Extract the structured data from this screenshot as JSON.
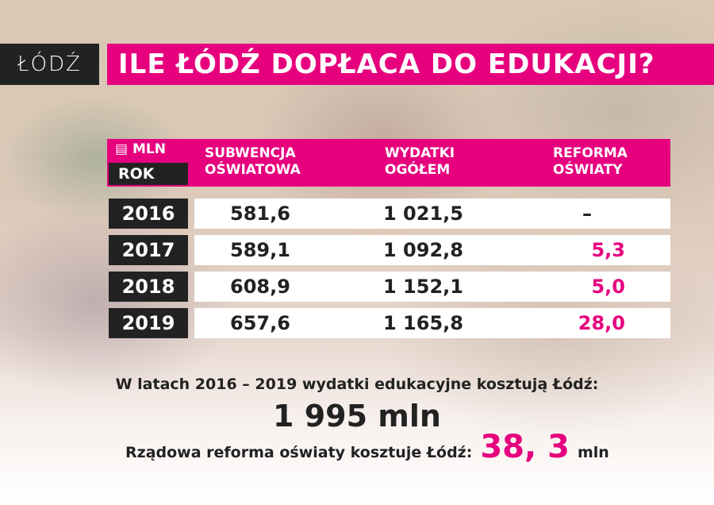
{
  "logo": "ŁÓDŹ",
  "title": "ILE ŁÓDŹ DOPŁACA DO EDUKACJI?",
  "header": {
    "unit": "MLN",
    "unit_icon": "money-stack-icon",
    "year": "ROK",
    "col1": [
      "SUBWENCJA",
      "OŚWIATOWA"
    ],
    "col2": [
      "WYDATKI",
      "OGÓŁEM"
    ],
    "col3": [
      "REFORMA",
      "OŚWIATY"
    ]
  },
  "rows": [
    {
      "year": "2016",
      "subwencja": "581,6",
      "wydatki": "1 021,5",
      "reforma": "–"
    },
    {
      "year": "2017",
      "subwencja": "589,1",
      "wydatki": "1 092,8",
      "reforma": "5,3"
    },
    {
      "year": "2018",
      "subwencja": "608,9",
      "wydatki": "1 152,1",
      "reforma": "5,0"
    },
    {
      "year": "2019",
      "subwencja": "657,6",
      "wydatki": "1 165,8",
      "reforma": "28,0"
    }
  ],
  "summary": {
    "line1": "W latach 2016 – 2019 wydatki edukacyjne kosztują Łódź:",
    "total": "1 995 mln",
    "line3": "Rządowa reforma oświaty kosztuje Łódź:",
    "reform_total": "38, 3",
    "reform_unit": "mln"
  },
  "colors": {
    "accent": "#e6007e",
    "dark": "#222222"
  }
}
